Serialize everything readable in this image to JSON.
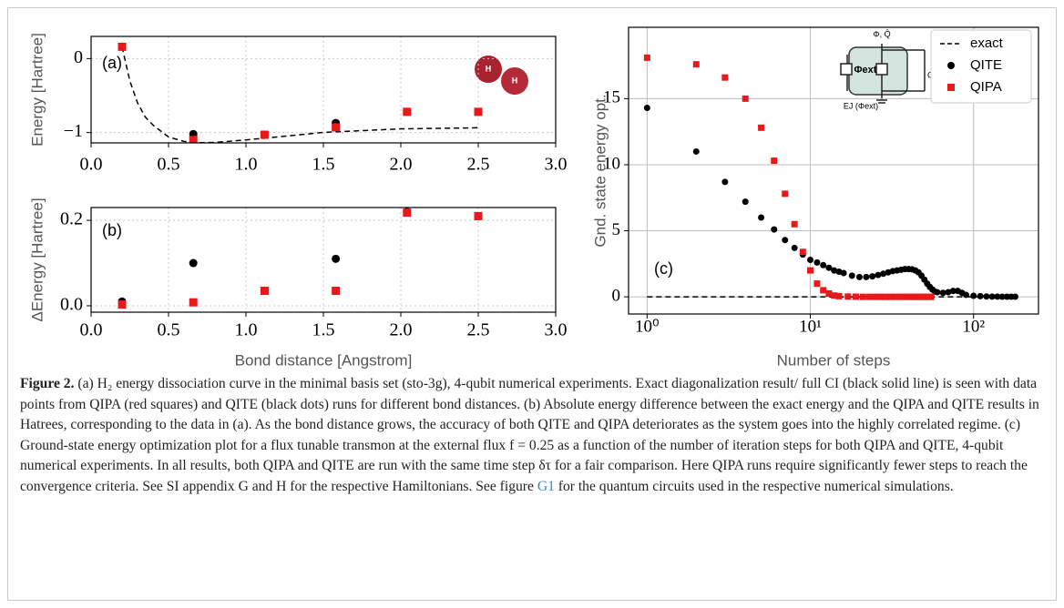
{
  "chart_data": [
    {
      "type": "scatter",
      "panel_label": "(a)",
      "ylabel": "Energy [Hartree]",
      "annotations": [
        "H",
        "H"
      ],
      "xlim": [
        0,
        3.0
      ],
      "ylim": [
        -1.14,
        0.3
      ],
      "xticks": [
        {
          "value": 0,
          "label": "0.0"
        },
        {
          "value": 0.5,
          "label": "0.5"
        },
        {
          "value": 1,
          "label": "1.0"
        },
        {
          "value": 1.5,
          "label": "1.5"
        },
        {
          "value": 2,
          "label": "2.0"
        },
        {
          "value": 2.5,
          "label": "2.5"
        },
        {
          "value": 3,
          "label": "3.0"
        }
      ],
      "yticks": [
        0,
        {
          "value": -1,
          "label": "−1"
        }
      ],
      "grid": true,
      "grid_style": "dotted",
      "series": [
        {
          "color": "#000000",
          "linestyle": "dashed",
          "x": [
            0.2,
            0.25,
            0.3,
            0.35,
            0.4,
            0.5,
            0.6,
            0.7,
            0.8,
            1.0,
            1.2,
            1.5,
            2.0,
            2.5
          ],
          "values": [
            0.16,
            -0.3,
            -0.6,
            -0.79,
            -0.9,
            -1.06,
            -1.12,
            -1.137,
            -1.134,
            -1.1,
            -1.06,
            -0.998,
            -0.95,
            -0.936
          ]
        },
        {
          "color": "#000000",
          "marker": "circle",
          "x": [
            0.2,
            0.66,
            1.12,
            1.58,
            2.04,
            2.5
          ],
          "values": [
            0.16,
            -1.02,
            -1.03,
            -0.87,
            -0.72,
            -0.72
          ]
        },
        {
          "color": "#e8191b",
          "marker": "square",
          "x": [
            0.2,
            0.66,
            1.12,
            1.58,
            2.04,
            2.5
          ],
          "values": [
            0.16,
            -1.1,
            -1.03,
            -0.93,
            -0.72,
            -0.72
          ]
        }
      ]
    },
    {
      "type": "scatter",
      "panel_label": "(b)",
      "ylabel": "ΔEnergy [Hartree]",
      "xlabel": "Bond distance [Angstrom]",
      "xlim": [
        0,
        3.0
      ],
      "ylim": [
        -0.015,
        0.23
      ],
      "xticks": [
        {
          "value": 0,
          "label": "0.0"
        },
        {
          "value": 0.5,
          "label": "0.5"
        },
        {
          "value": 1,
          "label": "1.0"
        },
        {
          "value": 1.5,
          "label": "1.5"
        },
        {
          "value": 2,
          "label": "2.0"
        },
        {
          "value": 2.5,
          "label": "2.5"
        },
        {
          "value": 3,
          "label": "3.0"
        }
      ],
      "yticks": [
        {
          "value": 0,
          "label": "0.0"
        },
        0.2
      ],
      "grid": true,
      "grid_style": "dotted",
      "series": [
        {
          "color": "#000000",
          "marker": "circle",
          "x": [
            0.2,
            0.66,
            1.12,
            1.58,
            2.04,
            2.5
          ],
          "values": [
            0.01,
            0.1,
            0.035,
            0.11,
            0.22,
            0.21
          ]
        },
        {
          "color": "#e8191b",
          "marker": "square",
          "x": [
            0.2,
            0.66,
            1.12,
            1.58,
            2.04,
            2.5
          ],
          "values": [
            0.003,
            0.008,
            0.035,
            0.035,
            0.218,
            0.21
          ]
        }
      ]
    },
    {
      "type": "scatter",
      "panel_label": "(c)",
      "ylabel": "Gnd. state energy opt.",
      "xlabel": "Number of steps",
      "annotations": [
        "Φext",
        "Φ, Q̂",
        "Csh",
        "EJ (Φext)"
      ],
      "xscale": "log",
      "xlim": [
        0.77,
        250
      ],
      "ylim": [
        -1.3,
        20.4
      ],
      "xticks": [
        {
          "value": 1,
          "label": "10⁰"
        },
        {
          "value": 10,
          "label": "10¹"
        },
        {
          "value": 100,
          "label": "10²"
        }
      ],
      "yticks": [
        0,
        5,
        10,
        15
      ],
      "grid": true,
      "grid_style": "solid",
      "legend": "upper right",
      "series": [
        {
          "name": "exact",
          "color": "#000000",
          "linestyle": "dashed",
          "x": [
            1,
            180
          ],
          "values": [
            0,
            0
          ]
        },
        {
          "name": "QITE",
          "color": "#000000",
          "marker": "circle",
          "x": [
            1,
            2,
            3,
            4,
            5,
            6,
            7,
            8,
            9,
            10,
            11,
            12,
            13,
            14,
            15,
            16,
            18,
            20,
            22,
            24,
            26,
            28,
            30,
            32,
            34,
            36,
            38,
            40,
            42,
            44,
            46,
            48,
            50,
            52,
            54,
            56,
            58,
            60,
            65,
            70,
            75,
            80,
            85,
            90,
            100,
            110,
            120,
            130,
            140,
            150,
            160,
            170,
            180
          ],
          "values": [
            14.3,
            11.0,
            8.7,
            7.2,
            6.0,
            5.1,
            4.3,
            3.7,
            3.2,
            2.8,
            2.6,
            2.4,
            2.2,
            2.0,
            1.9,
            1.8,
            1.6,
            1.5,
            1.5,
            1.55,
            1.65,
            1.75,
            1.85,
            1.95,
            2.0,
            2.05,
            2.1,
            2.1,
            2.08,
            2.0,
            1.85,
            1.6,
            1.3,
            1.0,
            0.75,
            0.55,
            0.4,
            0.35,
            0.3,
            0.35,
            0.45,
            0.45,
            0.3,
            0.15,
            0.08,
            0.05,
            0.03,
            0.02,
            0.02,
            0.01,
            0.01,
            0.01,
            0.01
          ]
        },
        {
          "name": "QIPA",
          "color": "#e8191b",
          "marker": "square",
          "x": [
            1,
            2,
            3,
            4,
            5,
            6,
            7,
            8,
            9,
            10,
            11,
            12,
            13,
            14,
            15,
            17,
            19,
            21,
            23,
            25,
            27,
            29,
            31,
            33,
            35,
            37,
            39,
            41,
            43,
            45,
            47,
            49,
            51,
            53,
            55
          ],
          "values": [
            18.1,
            17.6,
            16.6,
            15.0,
            12.8,
            10.3,
            7.8,
            5.5,
            3.4,
            2.0,
            1.0,
            0.5,
            0.25,
            0.1,
            0.05,
            0.02,
            0.01,
            0,
            0,
            0,
            0,
            0,
            0,
            0,
            0,
            0,
            0,
            0,
            0,
            0,
            0,
            0,
            0,
            0,
            0
          ]
        }
      ]
    }
  ],
  "caption": {
    "label": "Figure 2.",
    "text": "(a) H₂ energy dissociation curve in the minimal basis set (sto-3g), 4-qubit numerical experiments. Exact diagonalization result/ full CI (black solid line) is seen with data points from QIPA (red squares) and QITE (black dots) runs for different bond distances. (b) Absolute energy difference between the exact energy and the QIPA and QITE results in Hatrees, corresponding to the data in (a). As the bond distance grows, the accuracy of both QITE and QIPA deteriorates as the system goes into the highly correlated regime. (c) Ground-state energy optimization plot for a flux tunable transmon at the external flux f = 0.25 as a function of the number of iteration steps for both QIPA and QITE, 4-qubit numerical experiments. In all results, both QIPA and QITE are run with the same time step δτ for a fair comparison. Here QIPA runs require significantly fewer steps to reach the convergence criteria. See SI appendix G and H for the respective Hamiltonians. See figure ",
    "link": "G1",
    "text_end": " for the quantum circuits used in the respective numerical simulations."
  }
}
